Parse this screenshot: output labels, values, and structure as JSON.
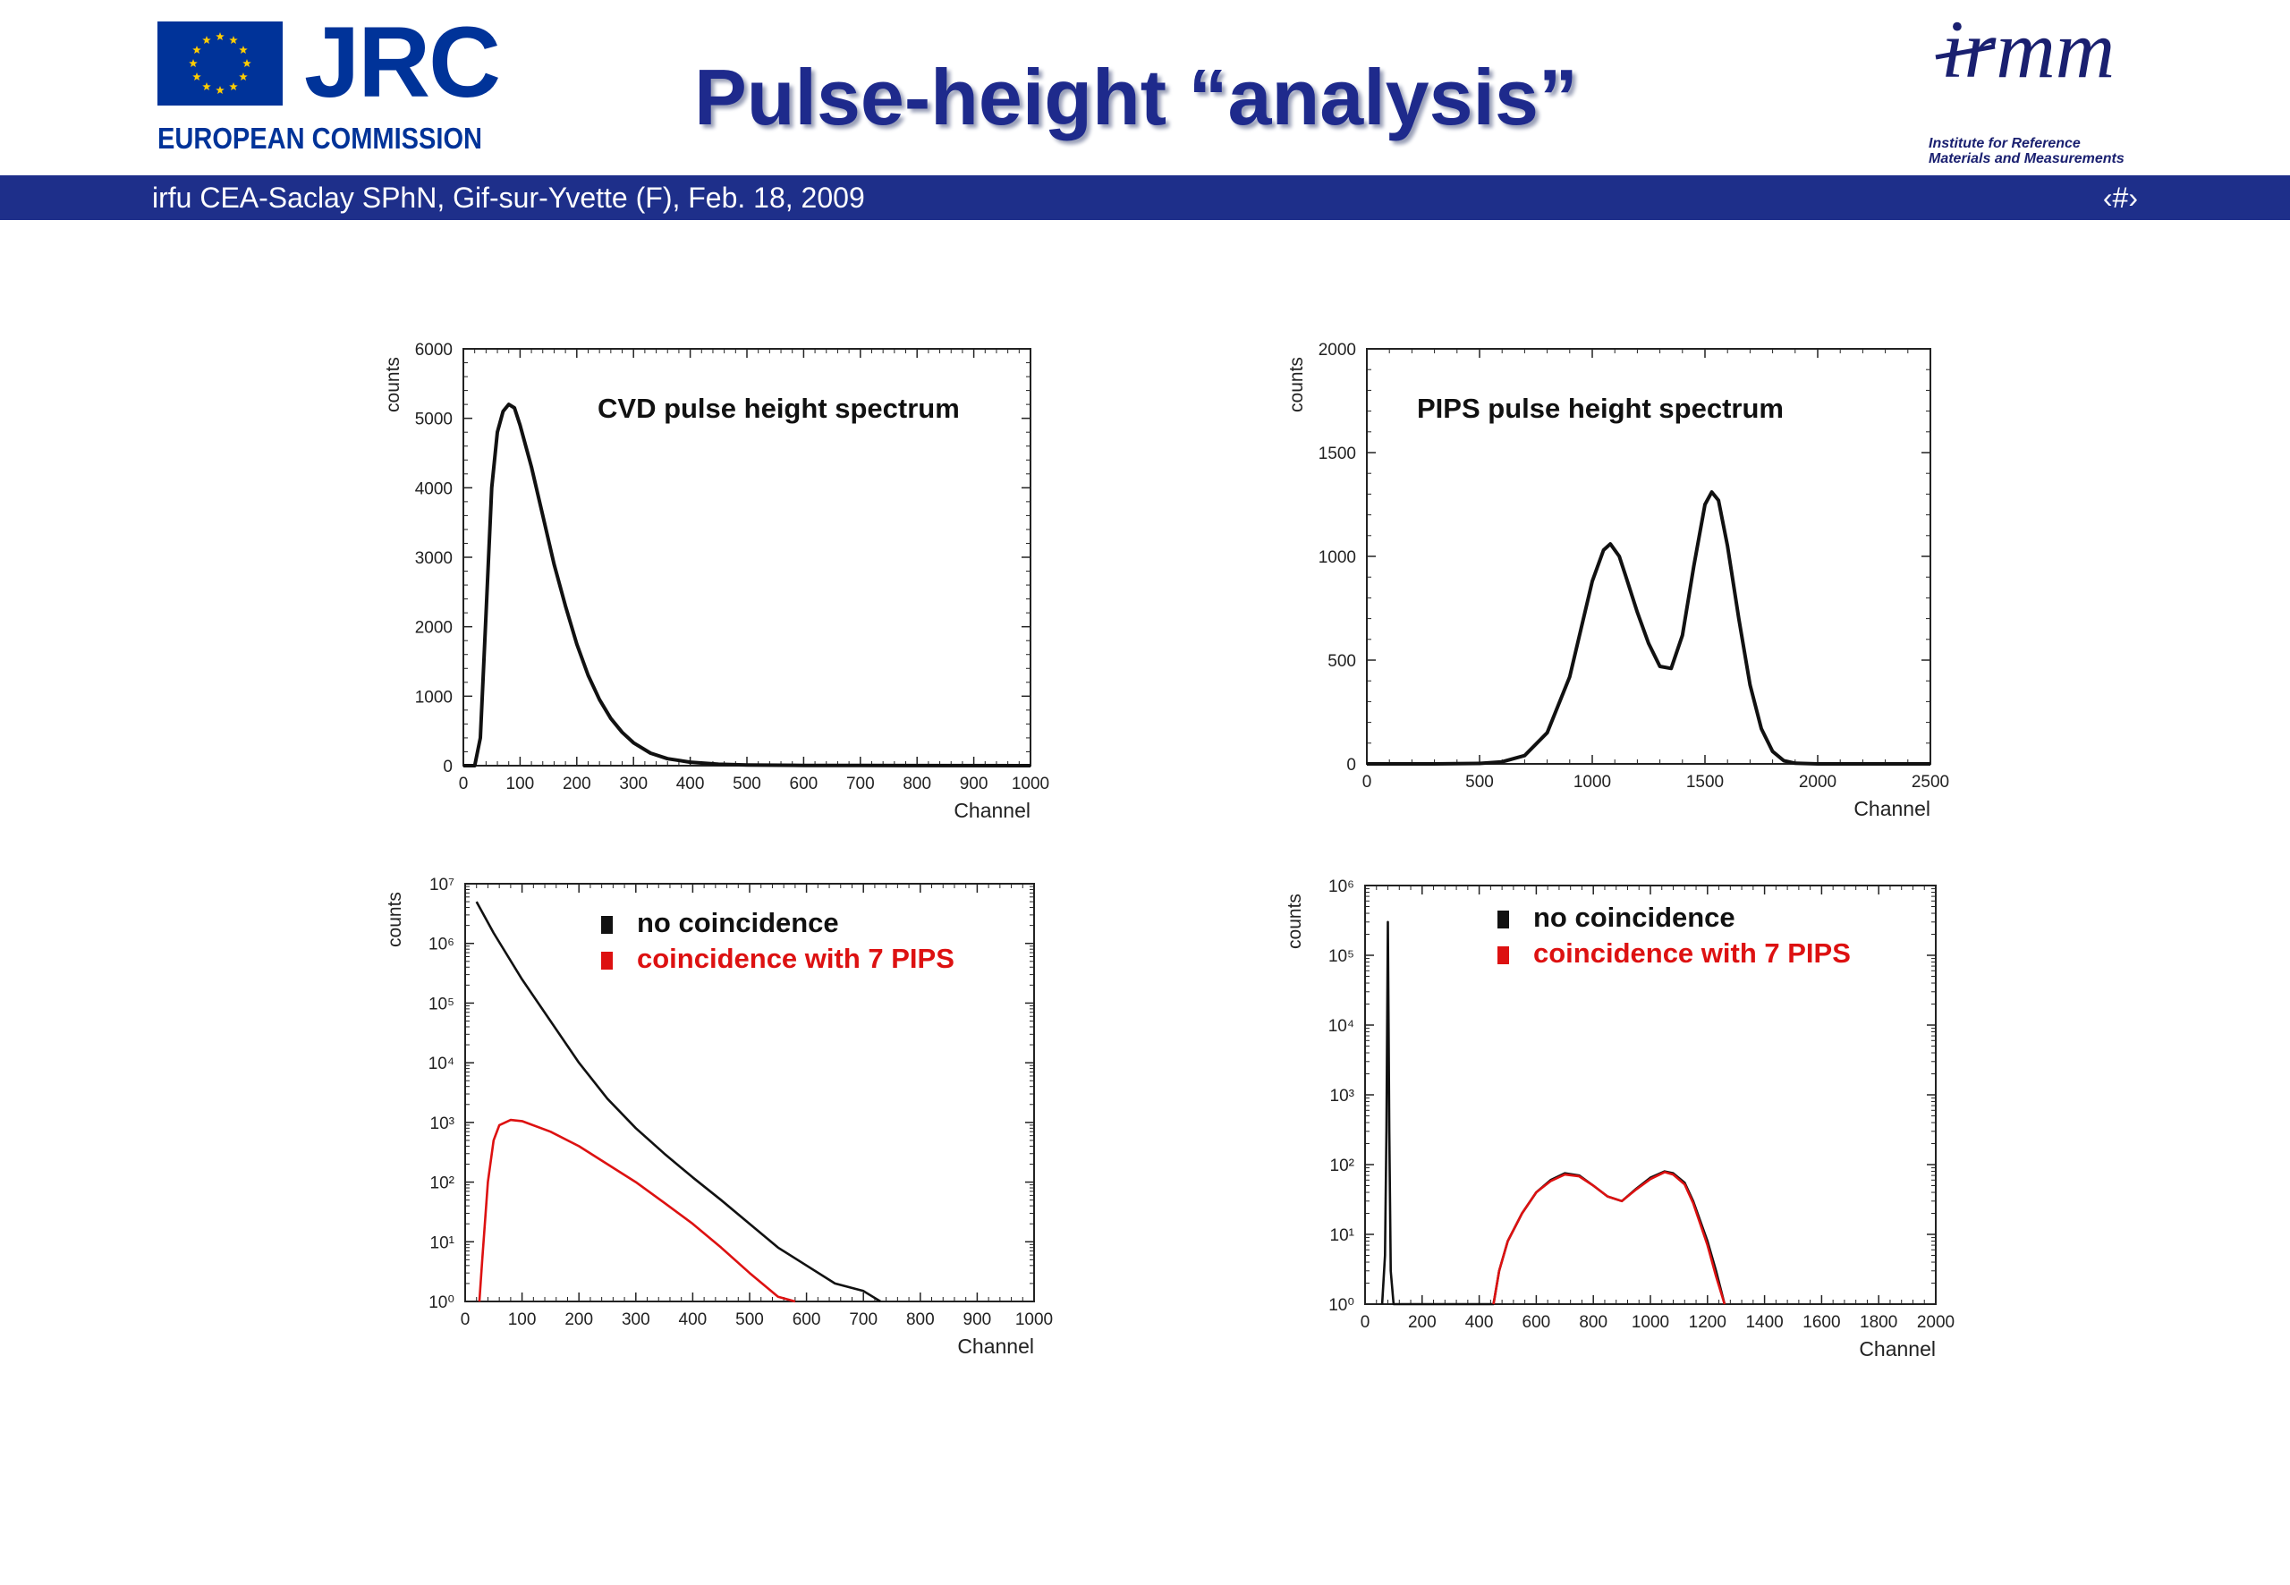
{
  "header": {
    "jrc_letters": "JRC",
    "jrc_subtitle": "EUROPEAN COMMISSION",
    "title": "Pulse-height “analysis”",
    "irmm_letters": "irmm",
    "irmm_caption": "Institute for Reference\nMaterials and Measurements"
  },
  "footer": {
    "text": "irfu CEA-Saclay SPhN, Gif-sur-Yvette (F), Feb. 18, 2009",
    "page": "‹#›"
  },
  "colors": {
    "eu_blue": "#003399",
    "band": "#1e2f8a",
    "title": "#1e2a8c",
    "series_black": "#111111",
    "series_red": "#dd1111"
  },
  "chart_data": [
    {
      "type": "line",
      "annotation": "CVD pulse height spectrum",
      "xlabel": "Channel",
      "ylabel": "counts",
      "xlim": [
        0,
        1000
      ],
      "ylim": [
        0,
        6000
      ],
      "xticks": [
        "0",
        "100",
        "200",
        "300",
        "400",
        "500",
        "600",
        "700",
        "800",
        "900",
        "1000"
      ],
      "yticks": [
        "0",
        "1000",
        "2000",
        "3000",
        "4000",
        "5000",
        "6000"
      ],
      "series": [
        {
          "color": "#111111",
          "x": [
            0,
            20,
            30,
            40,
            50,
            60,
            70,
            80,
            90,
            100,
            120,
            140,
            160,
            180,
            200,
            220,
            240,
            260,
            280,
            300,
            330,
            360,
            400,
            450,
            500,
            600,
            700,
            800,
            1000
          ],
          "y": [
            0,
            0,
            400,
            2200,
            4000,
            4800,
            5100,
            5200,
            5150,
            4900,
            4300,
            3600,
            2900,
            2300,
            1750,
            1300,
            950,
            680,
            480,
            330,
            180,
            100,
            50,
            20,
            10,
            4,
            2,
            1,
            0
          ]
        }
      ]
    },
    {
      "type": "line",
      "annotation": "PIPS pulse height spectrum",
      "xlabel": "Channel",
      "ylabel": "counts",
      "xlim": [
        0,
        2500
      ],
      "ylim": [
        0,
        2000
      ],
      "xticks": [
        "0",
        "500",
        "1000",
        "1500",
        "2000",
        "2500"
      ],
      "yticks": [
        "0",
        "500",
        "1000",
        "1500",
        "2000"
      ],
      "series": [
        {
          "color": "#111111",
          "x": [
            0,
            300,
            500,
            600,
            700,
            800,
            900,
            950,
            1000,
            1050,
            1080,
            1120,
            1150,
            1200,
            1250,
            1300,
            1350,
            1400,
            1450,
            1500,
            1530,
            1560,
            1600,
            1650,
            1700,
            1750,
            1800,
            1850,
            1900,
            2000,
            2500
          ],
          "y": [
            0,
            0,
            2,
            10,
            40,
            150,
            420,
            650,
            880,
            1030,
            1060,
            1000,
            900,
            730,
            580,
            470,
            460,
            620,
            950,
            1250,
            1310,
            1270,
            1050,
            700,
            380,
            170,
            60,
            15,
            3,
            0,
            0
          ]
        }
      ]
    },
    {
      "type": "line",
      "xlabel": "Channel",
      "ylabel": "counts",
      "yscale": "log",
      "xlim": [
        0,
        1000
      ],
      "ylim": [
        1,
        10000000
      ],
      "xticks": [
        "0",
        "100",
        "200",
        "300",
        "400",
        "500",
        "600",
        "700",
        "800",
        "900",
        "1000"
      ],
      "yticks": [
        "10^0",
        "10^1",
        "10^2",
        "10^3",
        "10^4",
        "10^5",
        "10^6",
        "10^7"
      ],
      "legend": [
        "no coincidence",
        "coincidence with 7 PIPS"
      ],
      "series": [
        {
          "name": "no coincidence",
          "color": "#111111",
          "x": [
            20,
            50,
            100,
            150,
            200,
            250,
            300,
            350,
            400,
            450,
            500,
            550,
            600,
            650,
            700,
            730
          ],
          "y": [
            5000000,
            1500000,
            250000,
            50000,
            10000,
            2500,
            800,
            300,
            120,
            50,
            20,
            8,
            4,
            2,
            1.5,
            1
          ]
        },
        {
          "name": "coincidence with 7 PIPS",
          "color": "#dd1111",
          "x": [
            25,
            30,
            40,
            50,
            60,
            80,
            100,
            150,
            200,
            250,
            300,
            350,
            400,
            450,
            500,
            550,
            580
          ],
          "y": [
            1,
            5,
            100,
            500,
            900,
            1100,
            1050,
            700,
            400,
            200,
            100,
            45,
            20,
            8,
            3,
            1.2,
            1
          ]
        }
      ]
    },
    {
      "type": "line",
      "xlabel": "Channel",
      "ylabel": "counts",
      "yscale": "log",
      "xlim": [
        0,
        2000
      ],
      "ylim": [
        1,
        1000000
      ],
      "xticks": [
        "0",
        "200",
        "400",
        "600",
        "800",
        "1000",
        "1200",
        "1400",
        "1600",
        "1800",
        "2000"
      ],
      "yticks": [
        "10^0",
        "10^1",
        "10^2",
        "10^3",
        "10^4",
        "10^5",
        "10^6"
      ],
      "legend": [
        "no coincidence",
        "coincidence with 7 PIPS"
      ],
      "series": [
        {
          "name": "no coincidence",
          "color": "#111111",
          "x": [
            60,
            70,
            75,
            80,
            85,
            90,
            100,
            120,
            450,
            470,
            500,
            550,
            600,
            650,
            700,
            750,
            800,
            850,
            900,
            950,
            1000,
            1050,
            1080,
            1120,
            1150,
            1200,
            1230,
            1260
          ],
          "y": [
            1,
            5,
            300,
            300000,
            300,
            3,
            1,
            1,
            1,
            3,
            8,
            20,
            40,
            60,
            75,
            70,
            50,
            35,
            30,
            45,
            65,
            80,
            75,
            55,
            30,
            8,
            3,
            1
          ]
        },
        {
          "name": "coincidence with 7 PIPS",
          "color": "#dd1111",
          "x": [
            450,
            470,
            500,
            550,
            600,
            650,
            700,
            750,
            800,
            850,
            900,
            950,
            1000,
            1050,
            1080,
            1120,
            1150,
            1200,
            1230,
            1260
          ],
          "y": [
            1,
            3,
            8,
            20,
            40,
            58,
            72,
            68,
            50,
            35,
            30,
            44,
            62,
            78,
            72,
            52,
            28,
            7,
            2.5,
            1
          ]
        }
      ]
    }
  ]
}
